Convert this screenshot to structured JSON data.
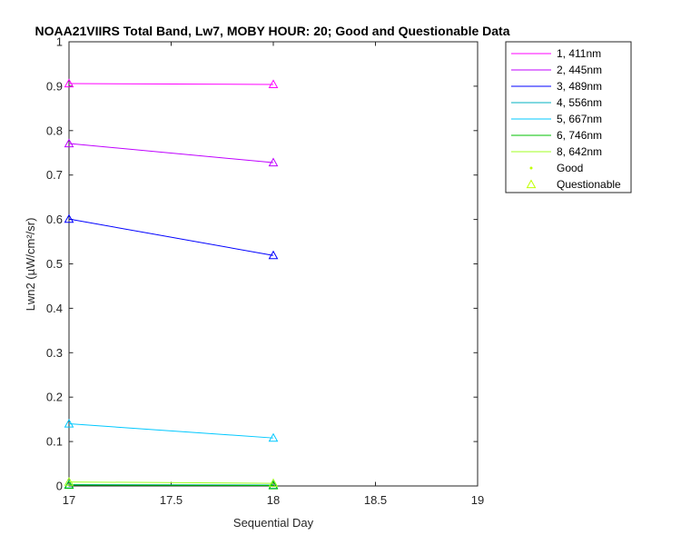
{
  "chart_data": {
    "type": "line",
    "title": "NOAA21VIIRS Total Band, Lw7, MOBY HOUR: 20;  Good and Questionable Data",
    "xlabel": "Sequential Day",
    "ylabel": "Lwn2 (µW/cm²/sr)",
    "xlim": [
      17,
      19
    ],
    "ylim": [
      0,
      1
    ],
    "xticks": [
      "17",
      "17.5",
      "18",
      "18.5",
      "19"
    ],
    "yticks": [
      "0",
      "0.1",
      "0.2",
      "0.3",
      "0.4",
      "0.5",
      "0.6",
      "0.7",
      "0.8",
      "0.9",
      "1"
    ],
    "x": [
      17,
      18
    ],
    "grid": false,
    "legend_position": "outside-top-right",
    "series": [
      {
        "name": "1, 411nm",
        "color": "#ff00ff",
        "values": [
          0.906,
          0.904
        ],
        "quality": "Questionable"
      },
      {
        "name": "2, 445nm",
        "color": "#bf00ff",
        "values": [
          0.771,
          0.728
        ],
        "quality": "Questionable"
      },
      {
        "name": "3, 489nm",
        "color": "#0000ff",
        "values": [
          0.601,
          0.519
        ],
        "quality": "Questionable"
      },
      {
        "name": "4, 556nm",
        "color": "#00b0c0",
        "values": [
          0.003,
          0.002
        ],
        "quality": "Questionable"
      },
      {
        "name": "5, 667nm",
        "color": "#00c8ff",
        "values": [
          0.14,
          0.108
        ],
        "quality": "Questionable"
      },
      {
        "name": "6, 746nm",
        "color": "#00c000",
        "values": [
          0.002,
          0.001
        ],
        "quality": "Questionable"
      },
      {
        "name": "8, 642nm",
        "color": "#a0ff20",
        "values": [
          0.009,
          0.006
        ],
        "quality": "Questionable"
      }
    ],
    "marker_legend": [
      {
        "label": "Good",
        "marker": "dot",
        "color": "#c0ff00"
      },
      {
        "label": "Questionable",
        "marker": "triangle",
        "color": "#c0ff00"
      }
    ]
  }
}
